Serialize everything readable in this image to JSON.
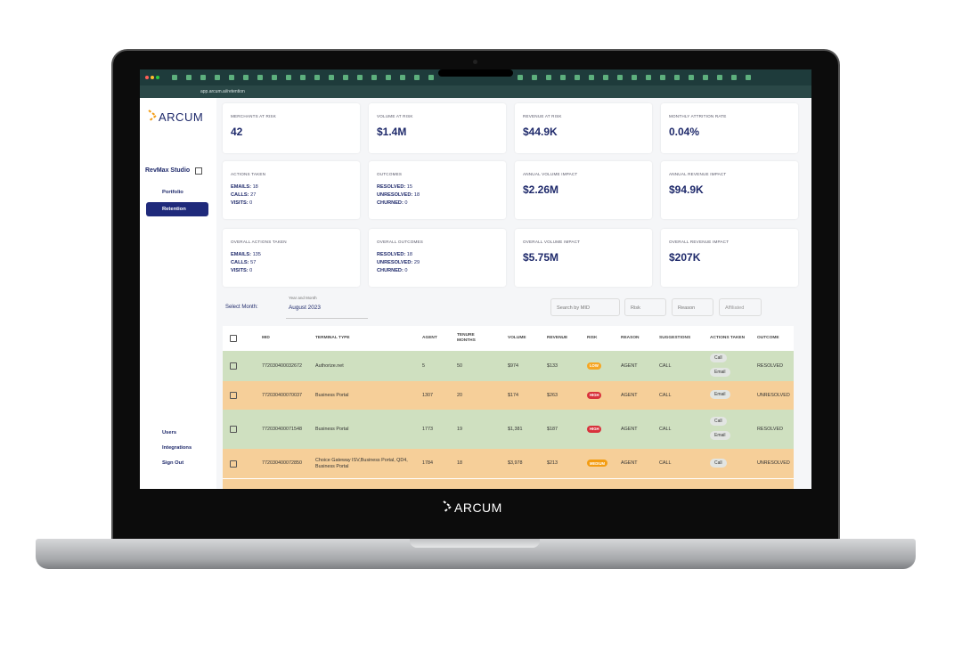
{
  "browser": {
    "url": "app.arcum.ai/retention"
  },
  "sidebar": {
    "logo": "ARCUM",
    "workspace": "RevMax Studio",
    "nav": [
      "Portfolio",
      "Retention"
    ],
    "bottom_nav": [
      "Users",
      "Integrations",
      "Sign Out"
    ]
  },
  "cards": [
    {
      "title": "MERCHANTS AT RISK",
      "value": "42"
    },
    {
      "title": "VOLUME AT RISK",
      "value": "$1.4M"
    },
    {
      "title": "REVENUE AT RISK",
      "value": "$44.9K"
    },
    {
      "title": "MONTHLY ATTRITION RATE",
      "value": "0.04%"
    },
    {
      "title": "ACTIONS TAKEN",
      "lines": [
        {
          "label": "EMAILS:",
          "value": "18"
        },
        {
          "label": "CALLS:",
          "value": "27"
        },
        {
          "label": "VISITS:",
          "value": "0"
        }
      ]
    },
    {
      "title": "OUTCOMES",
      "lines": [
        {
          "label": "RESOLVED:",
          "value": "15"
        },
        {
          "label": "UNRESOLVED:",
          "value": "18"
        },
        {
          "label": "CHURNED:",
          "value": "0"
        }
      ]
    },
    {
      "title": "ANNUAL VOLUME IMPACT",
      "value": "$2.26M"
    },
    {
      "title": "ANNUAL REVENUE IMPACT",
      "value": "$94.9K"
    },
    {
      "title": "OVERALL ACTIONS TAKEN",
      "lines": [
        {
          "label": "EMAILS:",
          "value": "135"
        },
        {
          "label": "CALLS:",
          "value": "57"
        },
        {
          "label": "VISITS:",
          "value": "0"
        }
      ]
    },
    {
      "title": "OVERALL OUTCOMES",
      "lines": [
        {
          "label": "RESOLVED:",
          "value": "18"
        },
        {
          "label": "UNRESOLVED:",
          "value": "29"
        },
        {
          "label": "CHURNED:",
          "value": "0"
        }
      ]
    },
    {
      "title": "OVERALL VOLUME IMPACT",
      "value": "$5.75M"
    },
    {
      "title": "OVERALL REVENUE IMPACT",
      "value": "$207K"
    }
  ],
  "filters": {
    "select_month": "Select Month:",
    "month_caption": "Year and Month",
    "month": "August 2023",
    "search": "Search by MID",
    "risk": "Risk",
    "reason": "Reason",
    "affiliated": "Affiliated"
  },
  "table": {
    "headers": [
      "MID",
      "TERMINAL TYPE",
      "AGENT",
      "TENURE MONTHS",
      "VOLUME",
      "REVENUE",
      "RISK",
      "REASON",
      "SUGGESTIONS",
      "ACTIONS TAKEN",
      "OUTCOME"
    ],
    "rows": [
      {
        "mid": "772030400032672",
        "terminal": "Authorize.net",
        "agent": "5",
        "tenure": "50",
        "volume": "$974",
        "revenue": "$133",
        "risk": "LOW",
        "reason": "AGENT",
        "suggestion": "CALL",
        "actions": [
          "Call",
          "Email"
        ],
        "outcome": "RESOLVED"
      },
      {
        "mid": "772030400070037",
        "terminal": "Business Portal",
        "agent": "1307",
        "tenure": "20",
        "volume": "$174",
        "revenue": "$263",
        "risk": "HIGH",
        "reason": "AGENT",
        "suggestion": "CALL",
        "actions": [
          "Email"
        ],
        "outcome": "UNRESOLVED"
      },
      {
        "mid": "772030400071548",
        "terminal": "Business Portal",
        "agent": "1773",
        "tenure": "19",
        "volume": "$1,381",
        "revenue": "$187",
        "risk": "HIGH",
        "reason": "AGENT",
        "suggestion": "CALL",
        "actions": [
          "Call",
          "Email"
        ],
        "outcome": "RESOLVED"
      },
      {
        "mid": "772030400072850",
        "terminal": "Choice Gateway ISV,Business Portal, QD4, Business Portal",
        "agent": "1784",
        "tenure": "18",
        "volume": "$3,978",
        "revenue": "$213",
        "risk": "MEDIUM",
        "reason": "AGENT",
        "suggestion": "CALL",
        "actions": [
          "Call"
        ],
        "outcome": "UNRESOLVED"
      }
    ]
  },
  "footer_logo": "ARCUM"
}
